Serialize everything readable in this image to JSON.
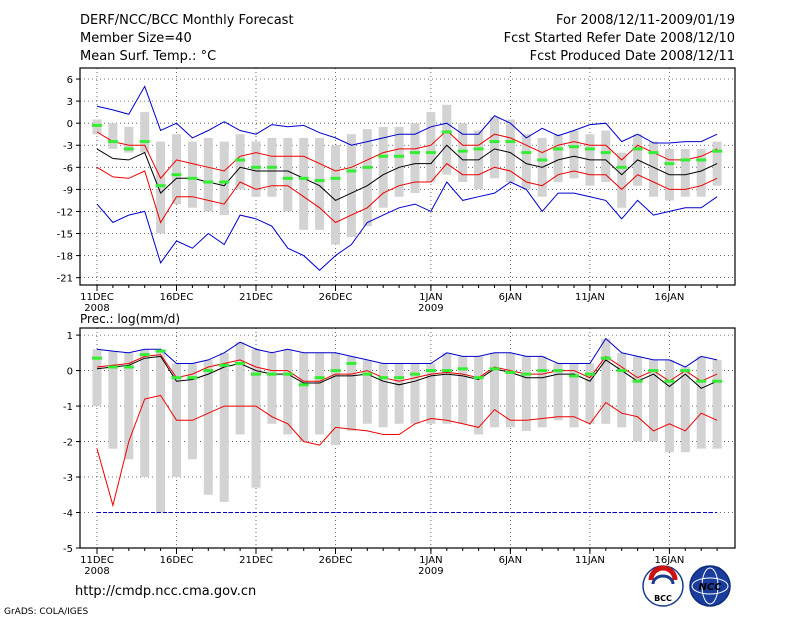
{
  "header": {
    "title": "DERF/NCC/BCC Monthly Forecast",
    "member_size": "Member Size=40",
    "variable": "Mean Surf. Temp.: °C",
    "period": "For 2008/12/11-2009/01/19",
    "refer_date": "Fcst Started Refer Date 2008/12/10",
    "produced_date": "Fcst Produced Date 2008/12/11"
  },
  "footer": {
    "url": "http://cmdp.ncc.cma.gov.cn",
    "credit": "GrADS: COLA/IGES",
    "logo_bcc": "BCC",
    "logo_ncc": "NCC"
  },
  "colors": {
    "box": "#d3d3d3",
    "median": "#33ee33",
    "mean": "#000000",
    "sd": "#ee0000",
    "extreme": "#0000cc",
    "grid": "#444444"
  },
  "x_axis": {
    "days": 40,
    "ticks": [
      {
        "day": 0,
        "label": "11DEC",
        "sub": "2008"
      },
      {
        "day": 5,
        "label": "16DEC",
        "sub": ""
      },
      {
        "day": 10,
        "label": "21DEC",
        "sub": ""
      },
      {
        "day": 15,
        "label": "26DEC",
        "sub": ""
      },
      {
        "day": 21,
        "label": "1JAN",
        "sub": "2009"
      },
      {
        "day": 26,
        "label": "6JAN",
        "sub": ""
      },
      {
        "day": 31,
        "label": "11JAN",
        "sub": ""
      },
      {
        "day": 36,
        "label": "16JAN",
        "sub": ""
      }
    ]
  },
  "chart_data": [
    {
      "type": "line",
      "title": "Mean Surf. Temp.: °C",
      "ylabel": "",
      "ylim": [
        -22,
        7.5
      ],
      "yticks": [
        6,
        3,
        0,
        -3,
        -6,
        -9,
        -12,
        -15,
        -18,
        -21
      ],
      "series": [
        {
          "name": "max",
          "color": "#0000cc",
          "values": [
            2.3,
            1.8,
            1.2,
            5,
            -1,
            0,
            -2,
            -1,
            0.2,
            -1,
            -1.5,
            -0.2,
            -0.5,
            -0.3,
            -1.3,
            -2,
            -3,
            -2.5,
            -2,
            -1.5,
            -1.5,
            -0.5,
            0,
            -1.5,
            -1.5,
            1,
            0,
            -2,
            -0.7,
            -1.7,
            -1,
            -0.2,
            0,
            -2.5,
            -1.5,
            -2.7,
            -2.7,
            -2.5,
            -2.5,
            -1.5
          ]
        },
        {
          "name": "mean+sd",
          "color": "#ee0000",
          "values": [
            -1.2,
            -2.5,
            -3,
            -3,
            -7.5,
            -5,
            -5.5,
            -6,
            -6.5,
            -4.5,
            -4,
            -4.5,
            -4.5,
            -4.5,
            -5.5,
            -6.5,
            -6,
            -5,
            -4,
            -3.5,
            -3.5,
            -3,
            -1,
            -3,
            -3,
            -1.5,
            -2,
            -3,
            -4,
            -3,
            -2.5,
            -3,
            -3,
            -5,
            -3,
            -4,
            -5,
            -5,
            -4.5,
            -3.5
          ]
        },
        {
          "name": "mean",
          "color": "#000000",
          "values": [
            -3.5,
            -4.8,
            -5,
            -4,
            -9.5,
            -7.5,
            -7.5,
            -8,
            -8.5,
            -6,
            -6.5,
            -6.5,
            -6.5,
            -7.5,
            -8.5,
            -10.5,
            -9.5,
            -8.5,
            -7,
            -6,
            -5.5,
            -5.5,
            -3,
            -5,
            -5,
            -3.5,
            -4,
            -5.5,
            -6,
            -5,
            -4.5,
            -5,
            -5,
            -7,
            -5,
            -6,
            -7,
            -7,
            -6.5,
            -5.5
          ]
        },
        {
          "name": "mean-sd",
          "color": "#ee0000",
          "values": [
            -6,
            -7.3,
            -7.5,
            -6.5,
            -13.5,
            -10,
            -10,
            -10.5,
            -11,
            -8,
            -9,
            -8.5,
            -8.5,
            -10,
            -11.5,
            -13.5,
            -12.5,
            -11.5,
            -9.5,
            -8.5,
            -8,
            -8,
            -5.5,
            -7,
            -7,
            -6,
            -6.5,
            -8,
            -8.5,
            -7,
            -6.5,
            -7,
            -7,
            -9,
            -7,
            -8,
            -9,
            -9,
            -8.5,
            -7.5
          ]
        },
        {
          "name": "min",
          "color": "#0000cc",
          "values": [
            -11,
            -13.5,
            -12.5,
            -12,
            -19,
            -16,
            -17,
            -15,
            -16.5,
            -12.5,
            -13,
            -14,
            -17,
            -18,
            -20,
            -18,
            -16.5,
            -13.5,
            -12.5,
            -11.5,
            -11,
            -12,
            -8,
            -10.5,
            -10,
            -9.5,
            -8,
            -9,
            -12,
            -9.5,
            -9.5,
            -10,
            -10.5,
            -13,
            -10.5,
            -12.5,
            -12,
            -11.5,
            -11.5,
            -10
          ]
        }
      ],
      "median": [
        -0.3,
        -2.5,
        -3.5,
        -2.5,
        -8.5,
        -7,
        -7.5,
        -8,
        -8,
        -5,
        -6,
        -6,
        -7.5,
        -7.5,
        -7.8,
        -7.5,
        -6.5,
        -6,
        -4.5,
        -4.5,
        -4,
        -4,
        -1.2,
        -3.8,
        -3.5,
        -2.5,
        -2.5,
        -4,
        -5,
        -3.5,
        -3.2,
        -3.5,
        -4,
        -6,
        -3.5,
        -4,
        -5.5,
        -5,
        -5,
        -3.8
      ],
      "box_low": [
        -1.5,
        -3.5,
        -4,
        -4,
        -15,
        -11,
        -11.5,
        -12,
        -12.5,
        -9,
        -10,
        -10,
        -12,
        -14.5,
        -14.5,
        -16.5,
        -15.5,
        -14,
        -11.5,
        -10,
        -9.5,
        -8,
        -7,
        -8,
        -9,
        -7.5,
        -8,
        -9,
        -10,
        -8,
        -7.5,
        -8.5,
        -8,
        -11.5,
        -8.5,
        -10,
        -10.5,
        -10,
        -10,
        -8.5
      ],
      "box_high": [
        0.5,
        0,
        -0.5,
        1.5,
        -2.5,
        -1.5,
        -2.5,
        -2,
        -2.5,
        -1.5,
        -2.5,
        -2,
        -2,
        -2,
        -2,
        -3,
        -1.5,
        -0.8,
        -0.5,
        -0.5,
        0,
        1.5,
        2.5,
        0,
        -1,
        0.8,
        0.5,
        -1.5,
        -2,
        -1.5,
        -1,
        -1.5,
        -1,
        -4,
        -1.5,
        -2.5,
        -3.5,
        -3.5,
        -3.5,
        -2.5
      ]
    },
    {
      "type": "line",
      "title": "Prec.: log(mm/d)",
      "ylabel": "",
      "ylim": [
        -5,
        1.2
      ],
      "yticks": [
        1,
        0,
        -1,
        -2,
        -3,
        -4,
        -5
      ],
      "series": [
        {
          "name": "max",
          "color": "#0000cc",
          "values": [
            0.6,
            0.55,
            0.5,
            0.6,
            0.6,
            0.2,
            0.2,
            0.3,
            0.5,
            0.8,
            0.6,
            0.5,
            0.6,
            0.5,
            0.5,
            0.5,
            0.4,
            0.3,
            0.2,
            0.2,
            0.2,
            0.2,
            0.5,
            0.4,
            0.4,
            0.5,
            0.5,
            0.4,
            0.4,
            0.2,
            0.2,
            0.2,
            0.9,
            0.5,
            0.4,
            0.3,
            0.3,
            0.1,
            0.4,
            0.3
          ]
        },
        {
          "name": "mean+sd",
          "color": "#ee0000",
          "values": [
            0.1,
            0.15,
            0.2,
            0.4,
            0.45,
            -0.2,
            -0.1,
            0.1,
            0.2,
            0.3,
            0.1,
            0,
            0,
            -0.3,
            -0.3,
            -0.1,
            -0.1,
            0,
            -0.2,
            -0.3,
            -0.2,
            -0.1,
            -0.05,
            -0.1,
            -0.2,
            0.1,
            0,
            -0.1,
            -0.1,
            0,
            0,
            -0.2,
            0.4,
            0.1,
            -0.2,
            0,
            -0.3,
            0,
            -0.3,
            -0.1
          ]
        },
        {
          "name": "mean",
          "color": "#000000",
          "values": [
            0.05,
            0.1,
            0.15,
            0.35,
            0.4,
            -0.3,
            -0.25,
            -0.1,
            0.1,
            0.2,
            0,
            -0.1,
            -0.1,
            -0.35,
            -0.35,
            -0.15,
            -0.15,
            -0.1,
            -0.3,
            -0.4,
            -0.3,
            -0.15,
            -0.1,
            -0.15,
            -0.25,
            0.05,
            -0.05,
            -0.2,
            -0.2,
            -0.1,
            -0.1,
            -0.3,
            0.3,
            0,
            -0.3,
            -0.1,
            -0.45,
            -0.1,
            -0.5,
            -0.3
          ]
        },
        {
          "name": "mean-sd",
          "color": "#ee0000",
          "values": [
            -2.2,
            -3.8,
            -2,
            -0.8,
            -0.7,
            -1.4,
            -1.4,
            -1.2,
            -1,
            -1,
            -1,
            -1.3,
            -1.5,
            -2,
            -2.1,
            -1.6,
            -1.65,
            -1.7,
            -1.8,
            -1.8,
            -1.5,
            -1.35,
            -1.4,
            -1.5,
            -1.6,
            -1.1,
            -1.4,
            -1.4,
            -1.35,
            -1.3,
            -1.3,
            -1.5,
            -0.9,
            -1.2,
            -1.3,
            -1.7,
            -1.5,
            -1.7,
            -1.2,
            -1.4
          ]
        },
        {
          "name": "min",
          "color": "#0000cc",
          "values": [
            -4,
            -4,
            -4,
            -4,
            -4,
            -4,
            -4,
            -4,
            -4,
            -4,
            -4,
            -4,
            -4,
            -4,
            -4,
            -4,
            -4,
            -4,
            -4,
            -4,
            -4,
            -4,
            -4,
            -4,
            -4,
            -4,
            -4,
            -4,
            -4,
            -4,
            -4,
            -4,
            -4,
            -4,
            -4,
            -4,
            -4,
            -4,
            -4,
            -4
          ]
        }
      ],
      "median": [
        0.35,
        0.1,
        0.1,
        0.45,
        0.55,
        -0.2,
        -0.2,
        0,
        0.15,
        0.2,
        -0.1,
        -0.1,
        -0.1,
        -0.4,
        -0.2,
        0,
        0.2,
        -0.1,
        -0.2,
        -0.2,
        -0.1,
        0,
        0,
        0.05,
        -0.2,
        0.05,
        -0.05,
        -0.1,
        0,
        0,
        -0.15,
        -0.1,
        0.35,
        0,
        -0.3,
        0,
        -0.3,
        0,
        -0.3,
        -0.3
      ],
      "box_low": [
        -1,
        -2.2,
        -2.5,
        -3,
        -4,
        -3,
        -2.5,
        -3.5,
        -3.7,
        -1.8,
        -3.3,
        -1.5,
        -1.8,
        -2,
        -1.8,
        -2.1,
        -1.7,
        -1.5,
        -1.6,
        -1.5,
        -1.5,
        -1.5,
        -1.5,
        -1.5,
        -1.8,
        -1.6,
        -1.6,
        -1.7,
        -1.6,
        -1.4,
        -1.6,
        -1.5,
        -1.5,
        -1.6,
        -2,
        -2,
        -2.3,
        -2.3,
        -2.2,
        -2.2
      ],
      "box_high": [
        0.6,
        0.55,
        0.5,
        0.6,
        0.6,
        0.2,
        0.2,
        0.3,
        0.5,
        0.8,
        0.6,
        0.5,
        0.6,
        0.5,
        0.5,
        0.5,
        0.4,
        0.3,
        0.2,
        0.2,
        0.2,
        0.2,
        0.5,
        0.4,
        0.4,
        0.5,
        0.5,
        0.4,
        0.4,
        0.2,
        0.2,
        0.2,
        0.9,
        0.5,
        0.4,
        0.3,
        0.3,
        0.1,
        0.4,
        0.3
      ]
    }
  ]
}
